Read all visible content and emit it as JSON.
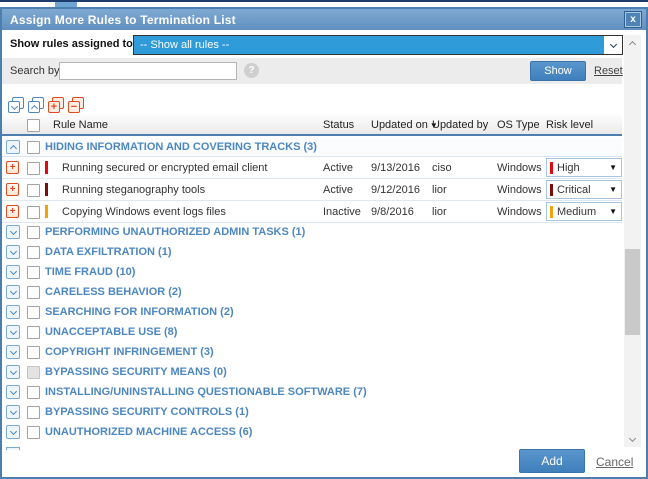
{
  "window": {
    "title": "Assign More Rules to Termination List",
    "close_icon": "x"
  },
  "filter": {
    "label": "Show rules assigned to",
    "value": "-- Show all rules --"
  },
  "search": {
    "label": "Search by:",
    "value": "",
    "placeholder": "",
    "show_button": "Show",
    "reset_link": "Reset",
    "help_icon": "?"
  },
  "toolbar": {
    "icons": [
      "expand-all-groups",
      "collapse-all-groups",
      "expand-all-rule-details",
      "collapse-all-rule-details"
    ]
  },
  "table": {
    "headers": {
      "rule_name": "Rule Name",
      "status": "Status",
      "updated_on": "Updated on",
      "updated_by": "Updated by",
      "os_type": "OS Type",
      "risk_level": "Risk level"
    },
    "sort": {
      "column": "updated_on",
      "direction": "desc",
      "icon": "▼"
    }
  },
  "groups": [
    {
      "label": "HIDING INFORMATION AND COVERING TRACKS (3)",
      "expanded": true,
      "checkbox_disabled": false,
      "rules": [
        {
          "name": "Running secured or encrypted email client",
          "status": "Active",
          "updated_on": "9/13/2016",
          "updated_by": "ciso",
          "os_type": "Windows",
          "risk": "High"
        },
        {
          "name": "Running steganography tools",
          "status": "Active",
          "updated_on": "9/12/2016",
          "updated_by": "lior",
          "os_type": "Windows",
          "risk": "Critical"
        },
        {
          "name": "Copying Windows event logs files",
          "status": "Inactive",
          "updated_on": "9/8/2016",
          "updated_by": "lior",
          "os_type": "Windows",
          "risk": "Medium"
        }
      ]
    },
    {
      "label": "PERFORMING UNAUTHORIZED ADMIN TASKS (1)",
      "expanded": false,
      "checkbox_disabled": false,
      "rules": []
    },
    {
      "label": "DATA EXFILTRATION (1)",
      "expanded": false,
      "checkbox_disabled": false,
      "rules": []
    },
    {
      "label": "TIME FRAUD (10)",
      "expanded": false,
      "checkbox_disabled": false,
      "rules": []
    },
    {
      "label": "CARELESS BEHAVIOR (2)",
      "expanded": false,
      "checkbox_disabled": false,
      "rules": []
    },
    {
      "label": "SEARCHING FOR INFORMATION (2)",
      "expanded": false,
      "checkbox_disabled": false,
      "rules": []
    },
    {
      "label": "UNACCEPTABLE USE (8)",
      "expanded": false,
      "checkbox_disabled": false,
      "rules": []
    },
    {
      "label": "COPYRIGHT INFRINGEMENT (3)",
      "expanded": false,
      "checkbox_disabled": false,
      "rules": []
    },
    {
      "label": "BYPASSING SECURITY MEANS (0)",
      "expanded": false,
      "checkbox_disabled": true,
      "rules": []
    },
    {
      "label": "INSTALLING/UNINSTALLING QUESTIONABLE SOFTWARE (7)",
      "expanded": false,
      "checkbox_disabled": false,
      "rules": []
    },
    {
      "label": "BYPASSING SECURITY CONTROLS (1)",
      "expanded": false,
      "checkbox_disabled": false,
      "rules": []
    },
    {
      "label": "UNAUTHORIZED MACHINE ACCESS (6)",
      "expanded": false,
      "checkbox_disabled": false,
      "rules": []
    }
  ],
  "footer": {
    "add_button": "Add",
    "cancel_link": "Cancel"
  },
  "colors": {
    "risk": {
      "High": "#e30613",
      "Critical": "#7d0c0c",
      "Medium": "#f0a30a"
    },
    "accent_blue": "#4c7fb0",
    "select_highlight": "#2f9bd8"
  }
}
